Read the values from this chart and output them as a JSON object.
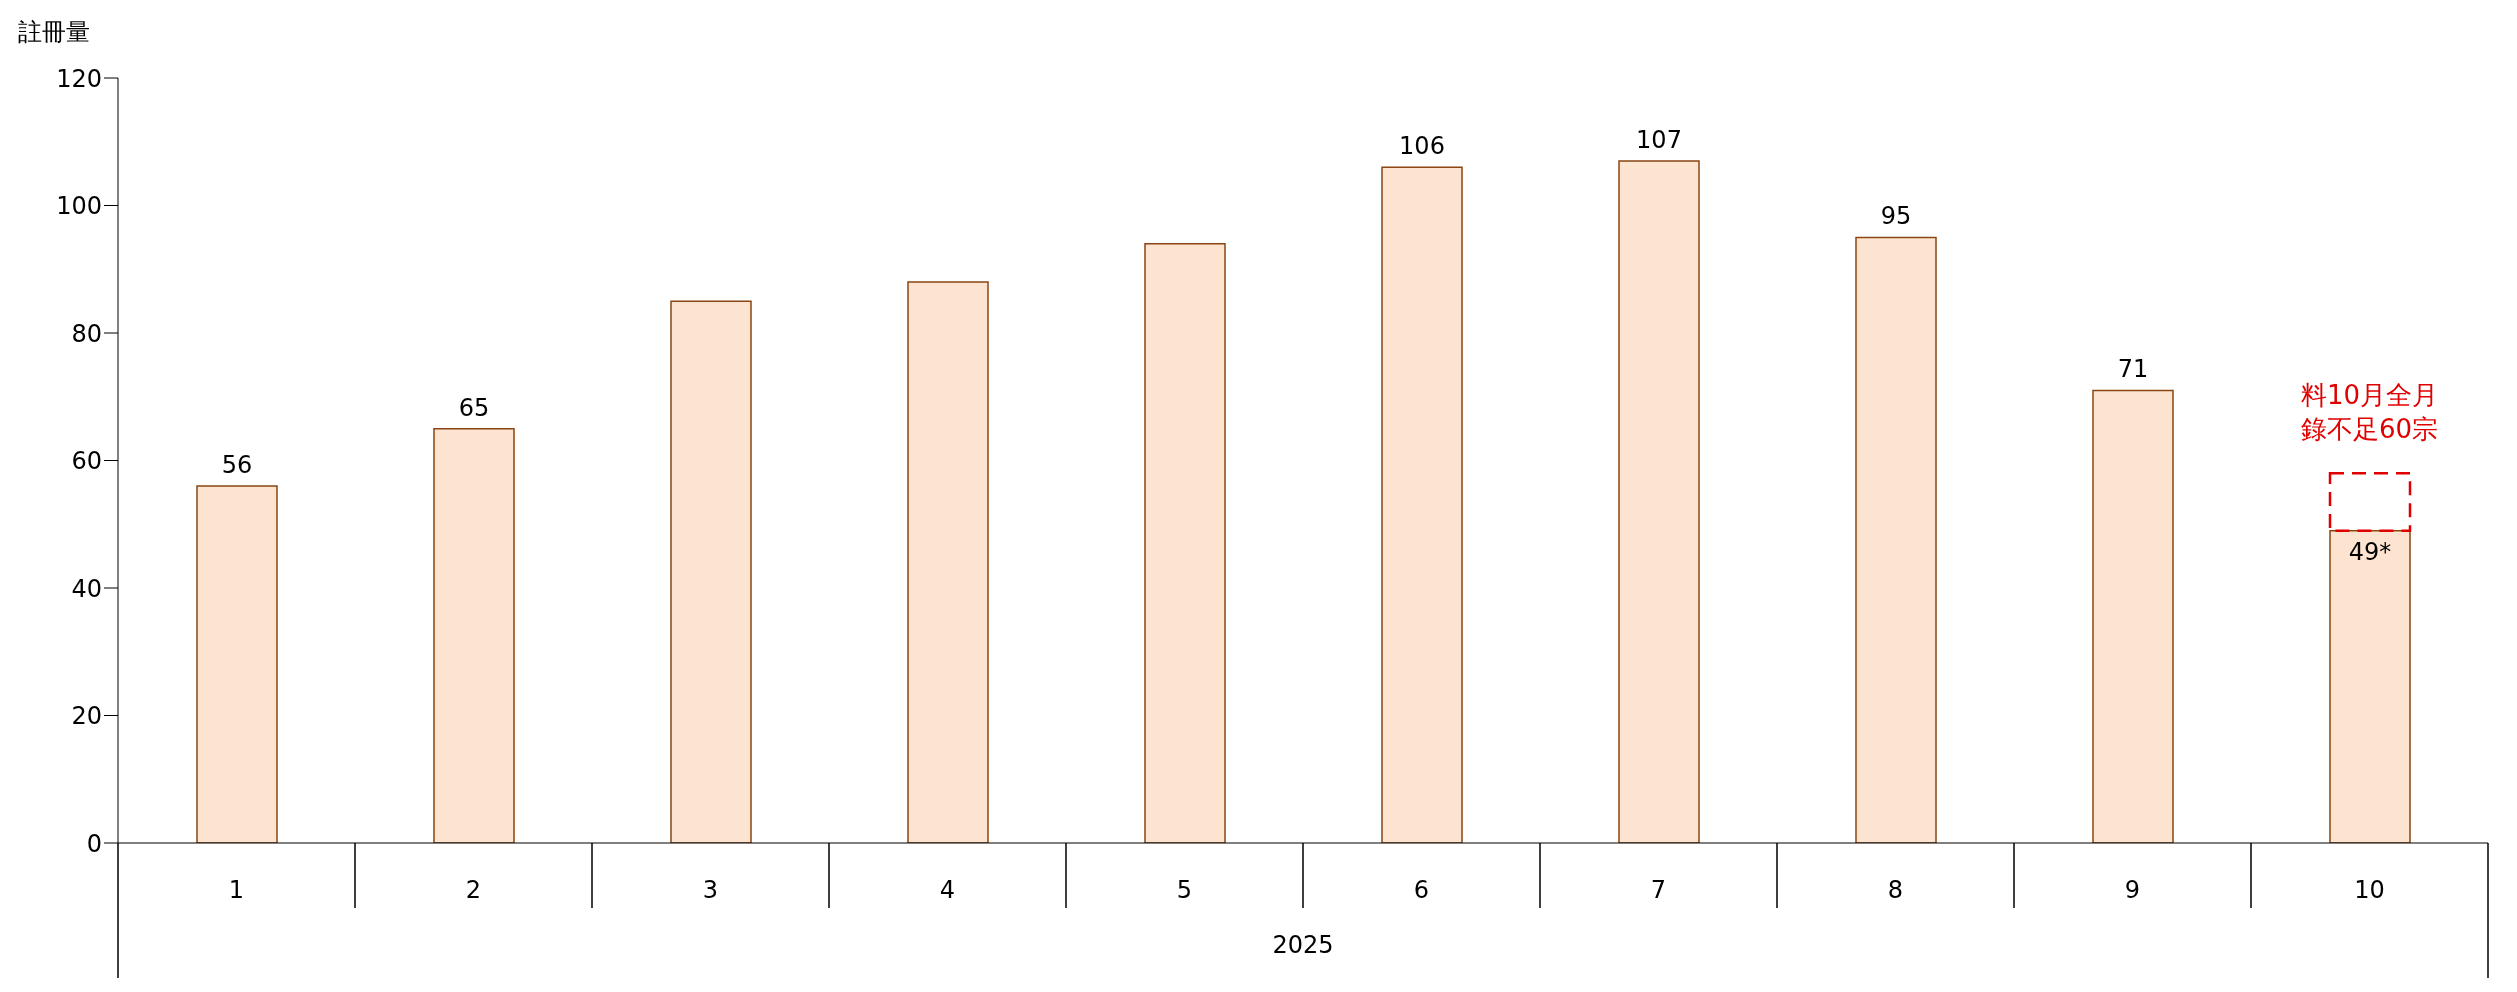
{
  "chart_data": {
    "type": "bar",
    "ylabel": "註冊量",
    "xlabel": "2025",
    "stacked": true,
    "categories": [
      "1",
      "2",
      "3",
      "4",
      "5",
      "6",
      "7",
      "8",
      "9",
      "10"
    ],
    "series": [
      {
        "color": "#fde4d0",
        "values": [
          56,
          65,
          85,
          88,
          94,
          106,
          107,
          95,
          71,
          49
        ],
        "value_labels": [
          "56",
          "65",
          null,
          null,
          null,
          "106",
          "107",
          "95",
          "71",
          "49*"
        ]
      },
      {
        "color": "#e00000",
        "line_style": "dashed",
        "values": [
          null,
          null,
          null,
          null,
          null,
          null,
          null,
          null,
          null,
          9
        ]
      }
    ],
    "ylim": [
      0,
      120
    ],
    "yticks": [
      0,
      20,
      40,
      60,
      80,
      100,
      120
    ],
    "annotations": [
      "料10月全月錄不足60宗"
    ]
  }
}
